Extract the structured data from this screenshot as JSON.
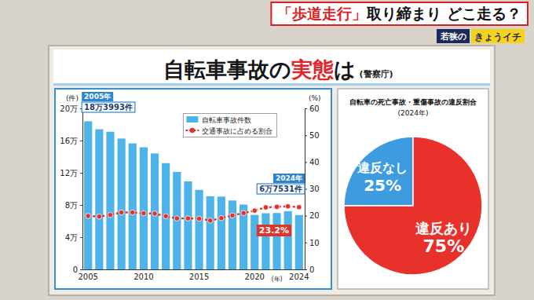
{
  "header": {
    "banner": [
      "「歩道走行」",
      "取り締まり どこ走る？"
    ],
    "logo": [
      "若狭の",
      "きょうイチ"
    ],
    "title": [
      "自転車事故の",
      "実態",
      "は"
    ],
    "source": "(警察庁)"
  },
  "chart_data": [
    {
      "type": "bar",
      "categories": [
        "2005",
        null,
        null,
        null,
        null,
        "2010",
        null,
        null,
        null,
        null,
        "2015",
        null,
        null,
        null,
        null,
        "2020",
        null,
        null,
        null,
        "2024"
      ],
      "series": [
        {
          "name": "自転車事故件数",
          "type": "bar",
          "color": "#4db3e8",
          "values": [
            183993,
            174000,
            171000,
            162500,
            156500,
            151700,
            144000,
            132000,
            121000,
            109300,
            98700,
            90800,
            90400,
            85600,
            80500,
            67700,
            69700,
            70000,
            72300,
            67531
          ]
        },
        {
          "name": "交通事故に占める割合",
          "type": "line",
          "axis": "y2",
          "color": "#e0332a",
          "marker": "circle",
          "line_style": "dotted",
          "values": [
            19.9,
            19.7,
            20.3,
            21.2,
            21.2,
            20.9,
            20.8,
            19.8,
            19.0,
            19.0,
            18.9,
            18.2,
            19.1,
            20.1,
            21.0,
            21.9,
            23.1,
            23.3,
            23.5,
            23.2
          ]
        }
      ],
      "ylim": [
        0,
        200000
      ],
      "yticks": [
        0,
        {
          "value": 40000,
          "label": "4万"
        },
        {
          "value": 80000,
          "label": "8万"
        },
        {
          "value": 120000,
          "label": "12万"
        },
        {
          "value": 160000,
          "label": "16万"
        },
        {
          "value": 200000,
          "label": "20万"
        }
      ],
      "y2lim": [
        0,
        60
      ],
      "y2ticks": [
        0,
        10,
        20,
        30,
        40,
        50,
        60
      ],
      "ylabel": "(件)",
      "y2label": "(%)",
      "xlabel": "(年)",
      "grid": false,
      "legend": "top",
      "annotations": [
        {
          "lines": [
            "2005年",
            "18万3993件"
          ]
        },
        {
          "lines": [
            "2024年",
            "6万7531件"
          ]
        },
        {
          "lines": [
            "23.2%"
          ]
        }
      ]
    },
    {
      "type": "pie",
      "title": "自転車の死亡事故・重傷事故の違反割合",
      "subtitle": "(2024年)",
      "categories": [
        "違反なし",
        "違反あり"
      ],
      "values": [
        25,
        75
      ],
      "value_labels": [
        "25%",
        "75%"
      ],
      "colors": [
        "#3d9be0",
        "#e8312a"
      ],
      "data_labels": true
    }
  ]
}
